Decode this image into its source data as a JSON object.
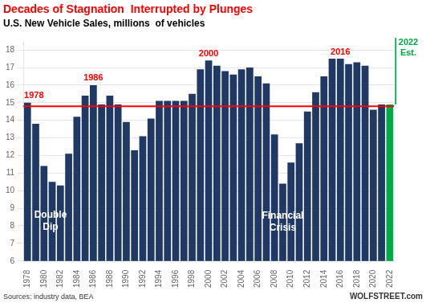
{
  "chart_data": {
    "type": "bar",
    "title": "Decades of Stagnation  Interrupted by Plunges",
    "title_color": "#FF0000",
    "subtitle": "U.S. New Vehicle Sales, millions  of vehicles",
    "categories": [
      1978,
      null,
      1980,
      null,
      1982,
      null,
      1984,
      null,
      1986,
      null,
      1988,
      null,
      1990,
      null,
      1992,
      null,
      1994,
      null,
      1996,
      null,
      1998,
      null,
      2000,
      null,
      2002,
      null,
      2004,
      null,
      2006,
      null,
      2008,
      null,
      2010,
      null,
      2012,
      null,
      2014,
      null,
      2016,
      null,
      2018,
      null,
      2020,
      null,
      2022
    ],
    "values": [
      15.0,
      13.8,
      11.4,
      10.5,
      10.3,
      12.1,
      14.2,
      15.4,
      16.0,
      14.9,
      15.4,
      14.9,
      13.9,
      12.3,
      13.1,
      14.1,
      15.1,
      15.1,
      15.1,
      15.1,
      15.5,
      16.9,
      17.4,
      17.1,
      16.8,
      16.6,
      16.9,
      17.0,
      16.5,
      16.1,
      13.2,
      10.4,
      11.6,
      12.7,
      14.5,
      15.6,
      16.5,
      17.5,
      17.5,
      17.2,
      17.3,
      17.1,
      14.6,
      14.9,
      14.9
    ],
    "colors": [
      "#1F3864",
      "#1F3864",
      "#1F3864",
      "#1F3864",
      "#1F3864",
      "#1F3864",
      "#1F3864",
      "#1F3864",
      "#1F3864",
      "#1F3864",
      "#1F3864",
      "#1F3864",
      "#1F3864",
      "#1F3864",
      "#1F3864",
      "#1F3864",
      "#1F3864",
      "#1F3864",
      "#1F3864",
      "#1F3864",
      "#1F3864",
      "#1F3864",
      "#1F3864",
      "#1F3864",
      "#1F3864",
      "#1F3864",
      "#1F3864",
      "#1F3864",
      "#1F3864",
      "#1F3864",
      "#1F3864",
      "#1F3864",
      "#1F3864",
      "#1F3864",
      "#1F3864",
      "#1F3864",
      "#1F3864",
      "#1F3864",
      "#1F3864",
      "#1F3864",
      "#1F3864",
      "#1F3864",
      "#1F3864",
      "#1F3864",
      "#00AA44"
    ],
    "ylim": [
      6,
      18.5
    ],
    "yticks": [
      6,
      7,
      8,
      9,
      10,
      11,
      12,
      13,
      14,
      15,
      16,
      17,
      18
    ],
    "grid": true,
    "reference_line": {
      "value": 14.8,
      "color": "#FF0000"
    },
    "annotations": [
      {
        "text": "1978",
        "color": "#FF0000"
      },
      {
        "text": "1986",
        "color": "#FF0000"
      },
      {
        "text": "2000",
        "color": "#FF0000"
      },
      {
        "text": "2016",
        "color": "#FF0000"
      },
      {
        "text": "2022\nEst.",
        "color": "#00AA44"
      },
      {
        "text": "Double\nDip",
        "color": "#FFFFFF"
      },
      {
        "text": "Financial\nCrisis",
        "color": "#FFFFFF"
      },
      {
        "text": "Sources: industry data, BEA",
        "color": "#333333"
      },
      {
        "text": "WOLFSTREET.com",
        "color": "#333333"
      }
    ]
  }
}
